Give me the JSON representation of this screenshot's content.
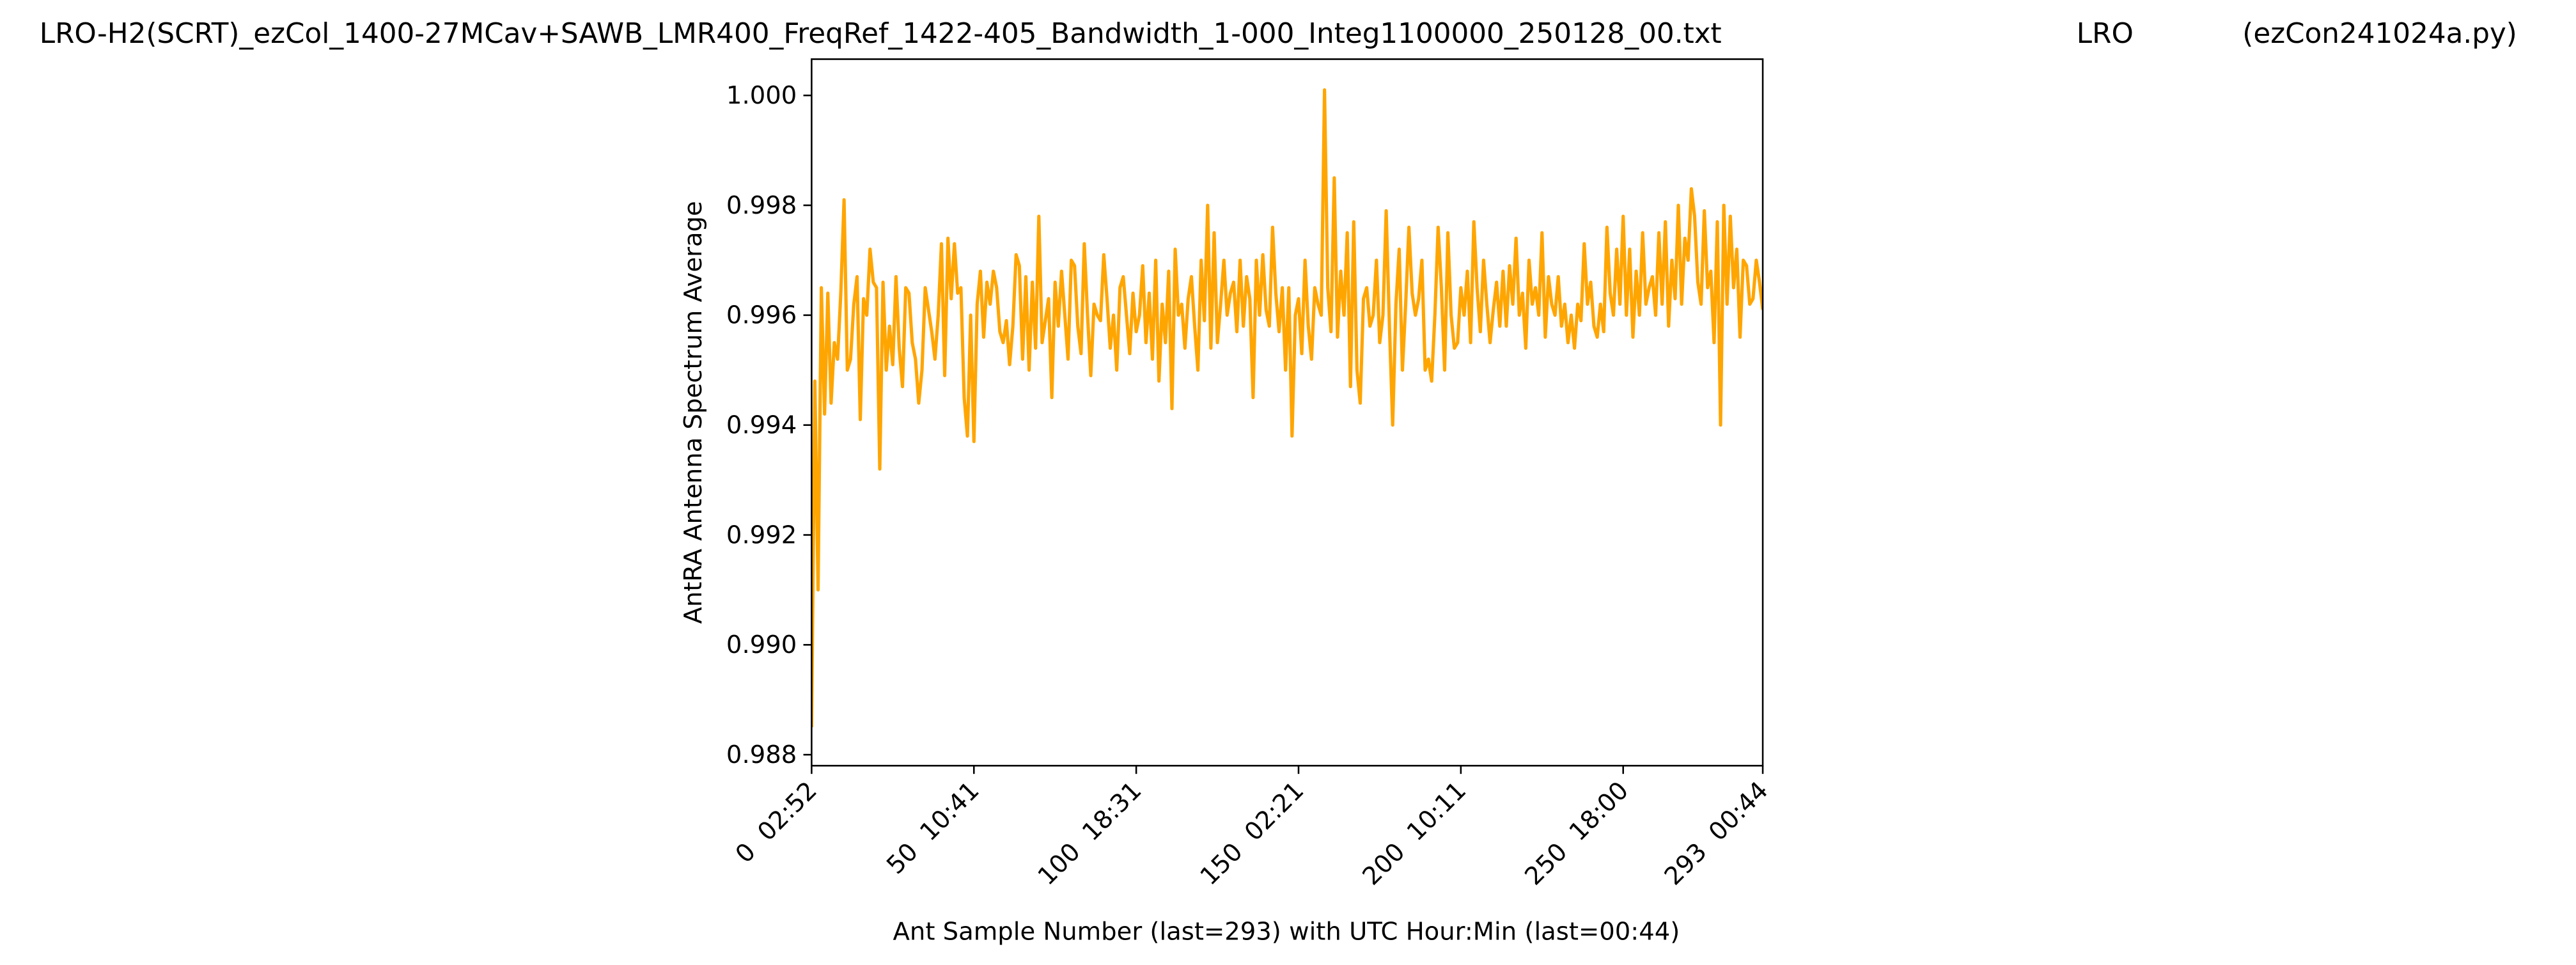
{
  "chart_data": {
    "type": "line",
    "title": "LRO-H2(SCRT)_ezCol_1400-27MCav+SAWB_LMR400_FreqRef_1422-405_Bandwidth_1-000_Integ1100000_250128_00.txt",
    "site": "LRO",
    "program": "(ezCon241024a.py)",
    "xlabel": "Ant Sample Number (last=293) with UTC Hour:Min (last=00:44)",
    "ylabel": "AntRA Antenna Spectrum Average",
    "color": "#ffa500",
    "grid": false,
    "xlim": [
      0,
      293
    ],
    "xticks": [
      {
        "value": 0,
        "label": "0  02:52"
      },
      {
        "value": 50,
        "label": "50  10:41"
      },
      {
        "value": 100,
        "label": "100  18:31"
      },
      {
        "value": 150,
        "label": "150  02:21"
      },
      {
        "value": 200,
        "label": "200  10:11"
      },
      {
        "value": 250,
        "label": "250  18:00"
      },
      {
        "value": 293,
        "label": "293  00:44"
      }
    ],
    "ylim": [
      0.9878,
      1.00066
    ],
    "yticks": [
      {
        "value": 0.988,
        "label": "0.988"
      },
      {
        "value": 0.99,
        "label": "0.990"
      },
      {
        "value": 0.992,
        "label": "0.992"
      },
      {
        "value": 0.994,
        "label": "0.994"
      },
      {
        "value": 0.996,
        "label": "0.996"
      },
      {
        "value": 0.998,
        "label": "0.998"
      },
      {
        "value": 1.0,
        "label": "1.000"
      }
    ],
    "values": [
      0.9885,
      0.9948,
      0.991,
      0.9965,
      0.9942,
      0.9964,
      0.9944,
      0.9955,
      0.9952,
      0.9964,
      0.9981,
      0.995,
      0.9952,
      0.9962,
      0.9967,
      0.9941,
      0.9963,
      0.996,
      0.9972,
      0.9966,
      0.9965,
      0.9932,
      0.9966,
      0.995,
      0.9958,
      0.9951,
      0.9967,
      0.9954,
      0.9947,
      0.9965,
      0.9964,
      0.9955,
      0.9952,
      0.9944,
      0.995,
      0.9965,
      0.9961,
      0.9957,
      0.9952,
      0.996,
      0.9973,
      0.9949,
      0.9974,
      0.9963,
      0.9973,
      0.9964,
      0.9965,
      0.9945,
      0.9938,
      0.996,
      0.9937,
      0.9962,
      0.9968,
      0.9956,
      0.9966,
      0.9962,
      0.9968,
      0.9965,
      0.9957,
      0.9955,
      0.9959,
      0.9951,
      0.9958,
      0.9971,
      0.9969,
      0.9952,
      0.9967,
      0.995,
      0.9966,
      0.9954,
      0.9978,
      0.9955,
      0.9959,
      0.9963,
      0.9945,
      0.9966,
      0.9958,
      0.9968,
      0.996,
      0.9952,
      0.997,
      0.9969,
      0.9958,
      0.9953,
      0.9973,
      0.996,
      0.9949,
      0.9962,
      0.996,
      0.9959,
      0.9971,
      0.9963,
      0.9954,
      0.996,
      0.995,
      0.9965,
      0.9967,
      0.996,
      0.9953,
      0.9964,
      0.9957,
      0.996,
      0.9969,
      0.9955,
      0.9964,
      0.9952,
      0.997,
      0.9948,
      0.9962,
      0.9955,
      0.9968,
      0.9943,
      0.9972,
      0.996,
      0.9962,
      0.9954,
      0.9963,
      0.9967,
      0.9958,
      0.995,
      0.997,
      0.9959,
      0.998,
      0.9954,
      0.9975,
      0.9955,
      0.9962,
      0.997,
      0.996,
      0.9964,
      0.9966,
      0.9957,
      0.997,
      0.9958,
      0.9967,
      0.9963,
      0.9945,
      0.997,
      0.996,
      0.9971,
      0.9961,
      0.9958,
      0.9976,
      0.9964,
      0.9957,
      0.9965,
      0.995,
      0.9965,
      0.9938,
      0.996,
      0.9963,
      0.9953,
      0.997,
      0.9958,
      0.9952,
      0.9965,
      0.9962,
      0.996,
      1.0001,
      0.9965,
      0.9957,
      0.9985,
      0.9956,
      0.9968,
      0.996,
      0.9975,
      0.9947,
      0.9977,
      0.995,
      0.9944,
      0.9963,
      0.9965,
      0.9958,
      0.996,
      0.997,
      0.9955,
      0.996,
      0.9979,
      0.9958,
      0.994,
      0.9962,
      0.9972,
      0.995,
      0.9962,
      0.9976,
      0.9964,
      0.996,
      0.9963,
      0.997,
      0.995,
      0.9952,
      0.9948,
      0.996,
      0.9976,
      0.9965,
      0.995,
      0.9975,
      0.996,
      0.9954,
      0.9955,
      0.9965,
      0.996,
      0.9968,
      0.9955,
      0.9977,
      0.9965,
      0.9957,
      0.997,
      0.9962,
      0.9955,
      0.9961,
      0.9966,
      0.9958,
      0.9968,
      0.9958,
      0.9969,
      0.9962,
      0.9974,
      0.996,
      0.9964,
      0.9954,
      0.997,
      0.9962,
      0.9965,
      0.996,
      0.9975,
      0.9956,
      0.9967,
      0.9962,
      0.996,
      0.9967,
      0.9958,
      0.9962,
      0.9955,
      0.996,
      0.9954,
      0.9962,
      0.9959,
      0.9973,
      0.9962,
      0.9966,
      0.9958,
      0.9956,
      0.9962,
      0.9957,
      0.9976,
      0.9964,
      0.996,
      0.9972,
      0.9962,
      0.9978,
      0.996,
      0.9972,
      0.9956,
      0.9968,
      0.996,
      0.9975,
      0.9962,
      0.9965,
      0.9967,
      0.996,
      0.9975,
      0.9962,
      0.9977,
      0.9958,
      0.997,
      0.9963,
      0.998,
      0.9962,
      0.9974,
      0.997,
      0.9983,
      0.9978,
      0.9966,
      0.9962,
      0.9979,
      0.9965,
      0.9968,
      0.9955,
      0.9977,
      0.994,
      0.998,
      0.9962,
      0.9978,
      0.9965,
      0.9972,
      0.9956,
      0.997,
      0.9969,
      0.9962,
      0.9963,
      0.997,
      0.9966,
      0.9961
    ]
  }
}
